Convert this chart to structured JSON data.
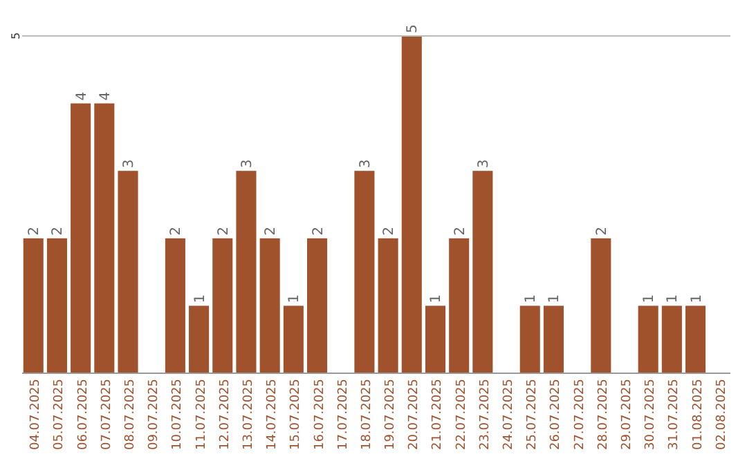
{
  "chart_data": {
    "type": "bar",
    "categories": [
      "04.07.2025",
      "05.07.2025",
      "06.07.2025",
      "07.07.2025",
      "08.07.2025",
      "09.07.2025",
      "10.07.2025",
      "11.07.2025",
      "12.07.2025",
      "13.07.2025",
      "14.07.2025",
      "15.07.2025",
      "16.07.2025",
      "17.07.2025",
      "18.07.2025",
      "19.07.2025",
      "20.07.2025",
      "21.07.2025",
      "22.07.2025",
      "23.07.2025",
      "24.07.2025",
      "25.07.2025",
      "26.07.2025",
      "27.07.2025",
      "28.07.2025",
      "29.07.2025",
      "30.07.2025",
      "31.07.2025",
      "01.08.2025",
      "02.08.2025"
    ],
    "values": [
      2,
      2,
      4,
      4,
      3,
      0,
      2,
      1,
      2,
      3,
      2,
      1,
      2,
      0,
      3,
      2,
      5,
      1,
      2,
      3,
      0,
      1,
      1,
      0,
      2,
      0,
      1,
      1,
      1,
      0
    ],
    "value_labels": [
      "2",
      "2",
      "4",
      "4",
      "3",
      null,
      "2",
      "1",
      "2",
      "3",
      "2",
      "1",
      "2",
      null,
      "3",
      "2",
      "5",
      "1",
      "2",
      "3",
      null,
      "1",
      "1",
      null,
      "2",
      null,
      "1",
      "1",
      "1",
      null
    ],
    "color": "#a0522d",
    "ylim": [
      0,
      5
    ],
    "yticks": [
      5
    ]
  }
}
